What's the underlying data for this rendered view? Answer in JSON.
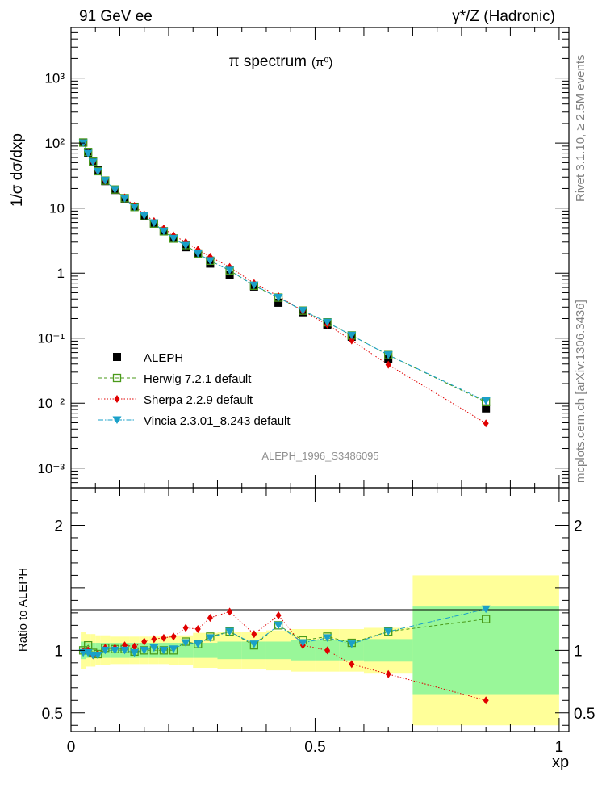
{
  "header": {
    "left": "91 GeV ee",
    "right": "γ*/Z (Hadronic)"
  },
  "side_labels": {
    "rivet": "Rivet 3.1.10, ≥ 2.5M events",
    "mcplots": "mcplots.cern.ch [arXiv:1306.3436]"
  },
  "colors": {
    "aleph": "#000000",
    "herwig": "#4a9a1a",
    "sherpa": "#e00000",
    "vincia": "#1aa0c8",
    "band_inner": "#99f799",
    "band_outer": "#ffff99"
  },
  "chart_data": [
    {
      "type": "scatter",
      "title": "π spectrum",
      "title_suffix": "(π⁰)",
      "analysis_label": "ALEPH_1996_S3486095",
      "ylabel": "1/σ dσ/dxp",
      "ylog": true,
      "ylim": [
        0.0005,
        6000
      ],
      "xlim": [
        0,
        1.02
      ],
      "legend_position": "bottom-left",
      "yticks": [
        {
          "v": 0.001,
          "label": "10⁻³"
        },
        {
          "v": 0.01,
          "label": "10⁻²"
        },
        {
          "v": 0.1,
          "label": "10⁻¹"
        },
        {
          "v": 1,
          "label": "1"
        },
        {
          "v": 10,
          "label": "10"
        },
        {
          "v": 100,
          "label": "10²"
        },
        {
          "v": 1000,
          "label": "10³"
        }
      ],
      "x": [
        0.025,
        0.035,
        0.045,
        0.055,
        0.07,
        0.09,
        0.11,
        0.13,
        0.15,
        0.17,
        0.19,
        0.21,
        0.235,
        0.26,
        0.285,
        0.325,
        0.375,
        0.425,
        0.475,
        0.525,
        0.575,
        0.65,
        0.85
      ],
      "series": [
        {
          "name": "ALEPH",
          "key": "aleph",
          "marker": "square",
          "values": [
            102,
            70,
            53,
            38,
            26,
            19,
            14,
            10.5,
            7.5,
            5.8,
            4.4,
            3.4,
            2.5,
            1.95,
            1.4,
            0.95,
            0.62,
            0.35,
            0.25,
            0.16,
            0.105,
            0.048,
            0.0083
          ]
        },
        {
          "name": "Herwig 7.2.1 default",
          "key": "herwig",
          "marker": "open-square",
          "values": [
            102,
            73,
            52,
            37,
            26.5,
            19.3,
            14.2,
            10.4,
            7.5,
            5.8,
            4.4,
            3.4,
            2.7,
            2.0,
            1.55,
            1.1,
            0.64,
            0.42,
            0.265,
            0.175,
            0.11,
            0.055,
            0.0104
          ]
        },
        {
          "name": "Sherpa 2.2.9 default",
          "key": "sherpa",
          "marker": "diamond",
          "values": [
            101,
            70,
            51,
            37,
            26.5,
            19.5,
            14.6,
            10.8,
            8.0,
            6.3,
            4.85,
            3.8,
            3.0,
            2.3,
            1.78,
            1.24,
            0.7,
            0.44,
            0.262,
            0.162,
            0.092,
            0.039,
            0.0049
          ]
        },
        {
          "name": "Vincia 2.3.01_8.243 default",
          "key": "vincia",
          "marker": "triangle-down",
          "values": [
            100,
            69,
            51,
            36.5,
            26.5,
            19.2,
            14.0,
            10.3,
            7.6,
            5.9,
            4.4,
            3.4,
            2.65,
            2.0,
            1.55,
            1.1,
            0.65,
            0.42,
            0.265,
            0.175,
            0.11,
            0.055,
            0.0108
          ]
        }
      ]
    },
    {
      "type": "scatter",
      "title": "",
      "ylabel": "Ratio to ALEPH",
      "xlabel": "xp",
      "ylim": [
        0.35,
        2.3
      ],
      "xlim": [
        0,
        1.02
      ],
      "yticks": [
        {
          "v": 0.5,
          "label": "0.5"
        },
        {
          "v": 1,
          "label": "1"
        },
        {
          "v": 2,
          "label": "2"
        }
      ],
      "xticks": [
        {
          "v": 0,
          "label": "0"
        },
        {
          "v": 0.5,
          "label": "0.5"
        },
        {
          "v": 1,
          "label": "1"
        }
      ],
      "x": [
        0.025,
        0.035,
        0.045,
        0.055,
        0.07,
        0.09,
        0.11,
        0.13,
        0.15,
        0.17,
        0.19,
        0.21,
        0.235,
        0.26,
        0.285,
        0.325,
        0.375,
        0.425,
        0.475,
        0.525,
        0.575,
        0.65,
        0.85
      ],
      "bands": {
        "edges": [
          0.02,
          0.03,
          0.04,
          0.05,
          0.06,
          0.08,
          0.1,
          0.12,
          0.14,
          0.16,
          0.18,
          0.2,
          0.22,
          0.25,
          0.3,
          0.35,
          0.4,
          0.45,
          0.5,
          0.55,
          0.6,
          0.7,
          1.0
        ],
        "inner": [
          0.07,
          0.06,
          0.06,
          0.06,
          0.06,
          0.06,
          0.06,
          0.06,
          0.06,
          0.06,
          0.06,
          0.06,
          0.06,
          0.06,
          0.07,
          0.07,
          0.07,
          0.08,
          0.08,
          0.08,
          0.09,
          0.35
        ],
        "outer": [
          0.15,
          0.13,
          0.13,
          0.12,
          0.12,
          0.11,
          0.11,
          0.11,
          0.11,
          0.11,
          0.11,
          0.12,
          0.12,
          0.14,
          0.15,
          0.15,
          0.16,
          0.17,
          0.17,
          0.17,
          0.18,
          0.6
        ]
      },
      "series": [
        {
          "name": "Herwig 7.2.1 default",
          "key": "herwig",
          "marker": "open-square",
          "values": [
            1.0,
            1.04,
            0.98,
            0.97,
            1.02,
            1.01,
            1.01,
            0.99,
            1.0,
            1.0,
            1.0,
            1.0,
            1.07,
            1.05,
            1.11,
            1.15,
            1.04,
            1.2,
            1.08,
            1.11,
            1.06,
            1.15,
            1.25
          ]
        },
        {
          "name": "Sherpa 2.2.9 default",
          "key": "sherpa",
          "marker": "diamond",
          "values": [
            0.99,
            1.0,
            0.96,
            0.97,
            1.02,
            1.02,
            1.04,
            1.03,
            1.07,
            1.09,
            1.1,
            1.11,
            1.18,
            1.17,
            1.26,
            1.31,
            1.13,
            1.28,
            1.04,
            1.0,
            0.89,
            0.81,
            0.6
          ]
        },
        {
          "name": "Vincia 2.3.01_8.243 default",
          "key": "vincia",
          "marker": "triangle-down",
          "values": [
            0.98,
            0.98,
            0.96,
            0.96,
            1.0,
            1.0,
            1.0,
            0.98,
            1.0,
            1.02,
            1.0,
            1.01,
            1.06,
            1.05,
            1.1,
            1.15,
            1.05,
            1.2,
            1.06,
            1.1,
            1.05,
            1.15,
            1.33
          ]
        }
      ]
    }
  ]
}
